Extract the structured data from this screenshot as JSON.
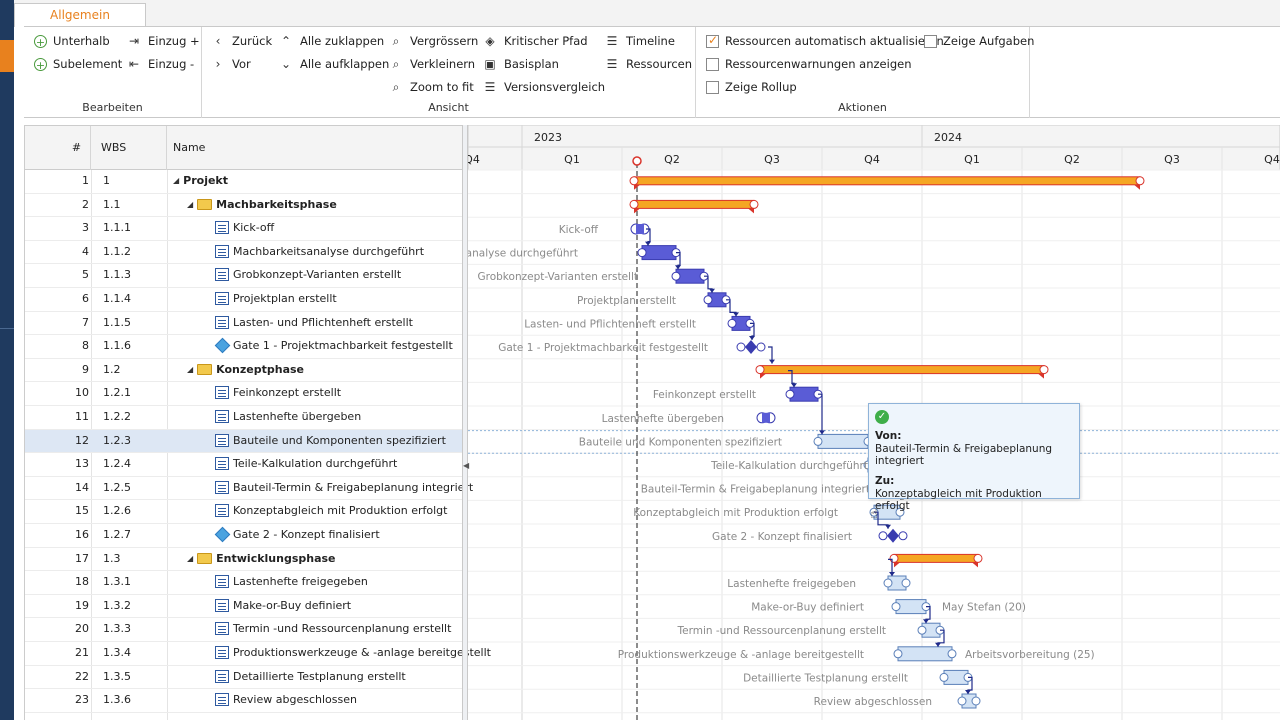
{
  "ribbon": {
    "tab": "Allgemein",
    "groups": {
      "bearbeiten": {
        "label": "Bearbeiten",
        "unterhalb": "Unterhalb",
        "subelement": "Subelement",
        "einzug_plus": "Einzug +",
        "einzug_minus": "Einzug -"
      },
      "ansicht": {
        "label": "Ansicht",
        "zurueck": "Zurück",
        "vor": "Vor",
        "alle_zuklappen": "Alle zuklappen",
        "alle_aufklappen": "Alle aufklappen",
        "vergroessern": "Vergrössern",
        "verkleinern": "Verkleinern",
        "zoom_to_fit": "Zoom to fit",
        "kritischer_pfad": "Kritischer Pfad",
        "basisplan": "Basisplan",
        "versionsvergleich": "Versionsvergleich",
        "timeline": "Timeline",
        "ressourcen": "Ressourcen"
      },
      "aktionen": {
        "label": "Aktionen",
        "ressourcen_auto": "Ressourcen automatisch aktualisieren",
        "ressourcen_auto_checked": true,
        "ressourcenwarnungen": "Ressourcenwarnungen anzeigen",
        "zeige_rollup": "Zeige Rollup",
        "zeige_aufgaben": "Zeige Aufgaben"
      }
    }
  },
  "grid": {
    "columns": {
      "num": "#",
      "wbs": "WBS",
      "name": "Name"
    },
    "rows": [
      {
        "num": "1",
        "wbs": "1",
        "name": "Projekt",
        "type": "summary",
        "level": 0
      },
      {
        "num": "2",
        "wbs": "1.1",
        "name": "Machbarkeitsphase",
        "type": "summary",
        "level": 1
      },
      {
        "num": "3",
        "wbs": "1.1.1",
        "name": "Kick-off",
        "type": "task",
        "level": 2
      },
      {
        "num": "4",
        "wbs": "1.1.2",
        "name": "Machbarkeitsanalyse durchgeführt",
        "type": "task",
        "level": 2
      },
      {
        "num": "5",
        "wbs": "1.1.3",
        "name": "Grobkonzept-Varianten erstellt",
        "type": "task",
        "level": 2
      },
      {
        "num": "6",
        "wbs": "1.1.4",
        "name": "Projektplan erstellt",
        "type": "task",
        "level": 2
      },
      {
        "num": "7",
        "wbs": "1.1.5",
        "name": "Lasten- und Pflichtenheft erstellt",
        "type": "task",
        "level": 2
      },
      {
        "num": "8",
        "wbs": "1.1.6",
        "name": "Gate 1 - Projektmachbarkeit festgestellt",
        "type": "milestone",
        "level": 2
      },
      {
        "num": "9",
        "wbs": "1.2",
        "name": "Konzeptphase",
        "type": "summary",
        "level": 1
      },
      {
        "num": "10",
        "wbs": "1.2.1",
        "name": "Feinkonzept erstellt",
        "type": "task",
        "level": 2
      },
      {
        "num": "11",
        "wbs": "1.2.2",
        "name": "Lastenhefte übergeben",
        "type": "task",
        "level": 2
      },
      {
        "num": "12",
        "wbs": "1.2.3",
        "name": "Bauteile und Komponenten spezifiziert",
        "type": "task",
        "level": 2,
        "selected": true
      },
      {
        "num": "13",
        "wbs": "1.2.4",
        "name": "Teile-Kalkulation durchgeführt",
        "type": "task",
        "level": 2
      },
      {
        "num": "14",
        "wbs": "1.2.5",
        "name": "Bauteil-Termin & Freigabeplanung integriert",
        "type": "task",
        "level": 2
      },
      {
        "num": "15",
        "wbs": "1.2.6",
        "name": "Konzeptabgleich mit Produktion erfolgt",
        "type": "task",
        "level": 2
      },
      {
        "num": "16",
        "wbs": "1.2.7",
        "name": "Gate 2 - Konzept finalisiert",
        "type": "milestone",
        "level": 2
      },
      {
        "num": "17",
        "wbs": "1.3",
        "name": "Entwicklungsphase",
        "type": "summary",
        "level": 1
      },
      {
        "num": "18",
        "wbs": "1.3.1",
        "name": "Lastenhefte freigegeben",
        "type": "task",
        "level": 2
      },
      {
        "num": "19",
        "wbs": "1.3.2",
        "name": "Make-or-Buy definiert",
        "type": "task",
        "level": 2
      },
      {
        "num": "20",
        "wbs": "1.3.3",
        "name": "Termin -und Ressourcenplanung erstellt",
        "type": "task",
        "level": 2
      },
      {
        "num": "21",
        "wbs": "1.3.4",
        "name": "Produktionswerkzeuge & -anlage bereitgestellt",
        "type": "task",
        "level": 2
      },
      {
        "num": "22",
        "wbs": "1.3.5",
        "name": "Detaillierte Testplanung erstellt",
        "type": "task",
        "level": 2
      },
      {
        "num": "23",
        "wbs": "1.3.6",
        "name": "Review abgeschlossen",
        "type": "task",
        "level": 2
      }
    ]
  },
  "gantt": {
    "years": [
      "2023",
      "2024"
    ],
    "quarters": [
      "Q4",
      "Q1",
      "Q2",
      "Q3",
      "Q4",
      "Q1",
      "Q2",
      "Q3",
      "Q4"
    ],
    "bar_labels": [
      "",
      "",
      "Kick-off",
      "Machbarkeitsanalyse durchgeführt",
      "Grobkonzept-Varianten erstellt",
      "Projektplan erstellt",
      "Lasten- und Pflichtenheft erstellt",
      "Gate 1 - Projektmachbarkeit festgestellt",
      "",
      "Feinkonzept erstellt",
      "Lastenhefte übergeben",
      "Bauteile und Komponenten spezifiziert",
      "Teile-Kalkulation durchgeführt",
      "Bauteil-Termin & Freigabeplanung integriert",
      "Konzeptabgleich mit Produktion erfolgt",
      "Gate 2 - Konzept finalisiert",
      "",
      "Lastenhefte freigegeben",
      "Make-or-Buy definiert",
      "Termin -und Ressourcenplanung erstellt",
      "Produktionswerkzeuge & -anlage bereitgestellt",
      "Detaillierte Testplanung erstellt",
      "Review abgeschlossen"
    ],
    "resource_labels": {
      "make_or_buy": "May Stefan (20)",
      "werkzeuge": "Arbeitsvorbereitung (25)"
    }
  },
  "tooltip": {
    "von_label": "Von:",
    "von_value": "Bauteil-Termin & Freigabeplanung integriert",
    "zu_label": "Zu:",
    "zu_value": "Konzeptabgleich mit Produktion erfolgt"
  },
  "colors": {
    "accent": "#e8811e",
    "task": "#5a5cd6",
    "summary": "#f5a623",
    "sidebar": "#1f3a5f"
  }
}
